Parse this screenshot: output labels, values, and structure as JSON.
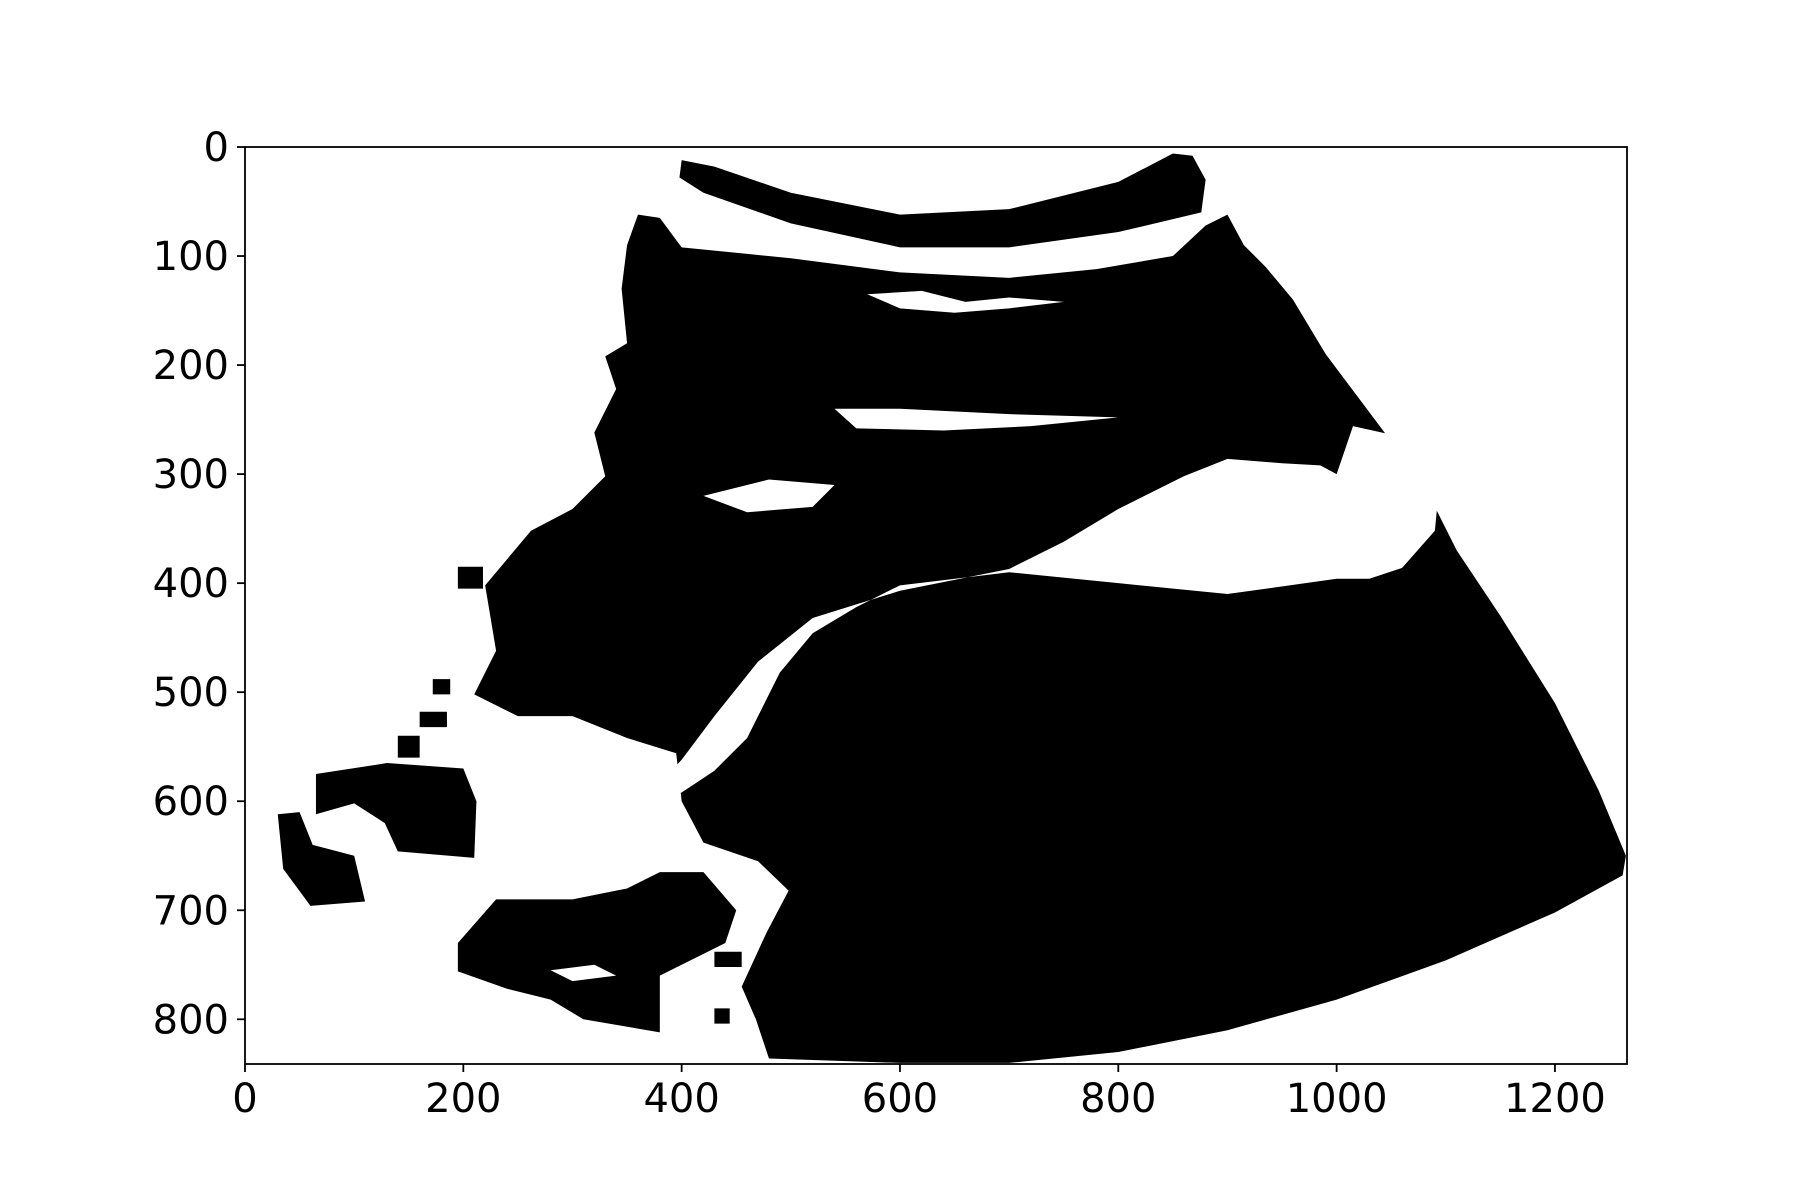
{
  "chart_data": {
    "type": "image",
    "xlim": [
      0,
      1266
    ],
    "ylim": [
      841,
      0
    ],
    "xticks": [
      0,
      200,
      400,
      600,
      800,
      1000,
      1200
    ],
    "yticks": [
      0,
      100,
      200,
      300,
      400,
      500,
      600,
      700,
      800
    ],
    "color": "#000000"
  }
}
